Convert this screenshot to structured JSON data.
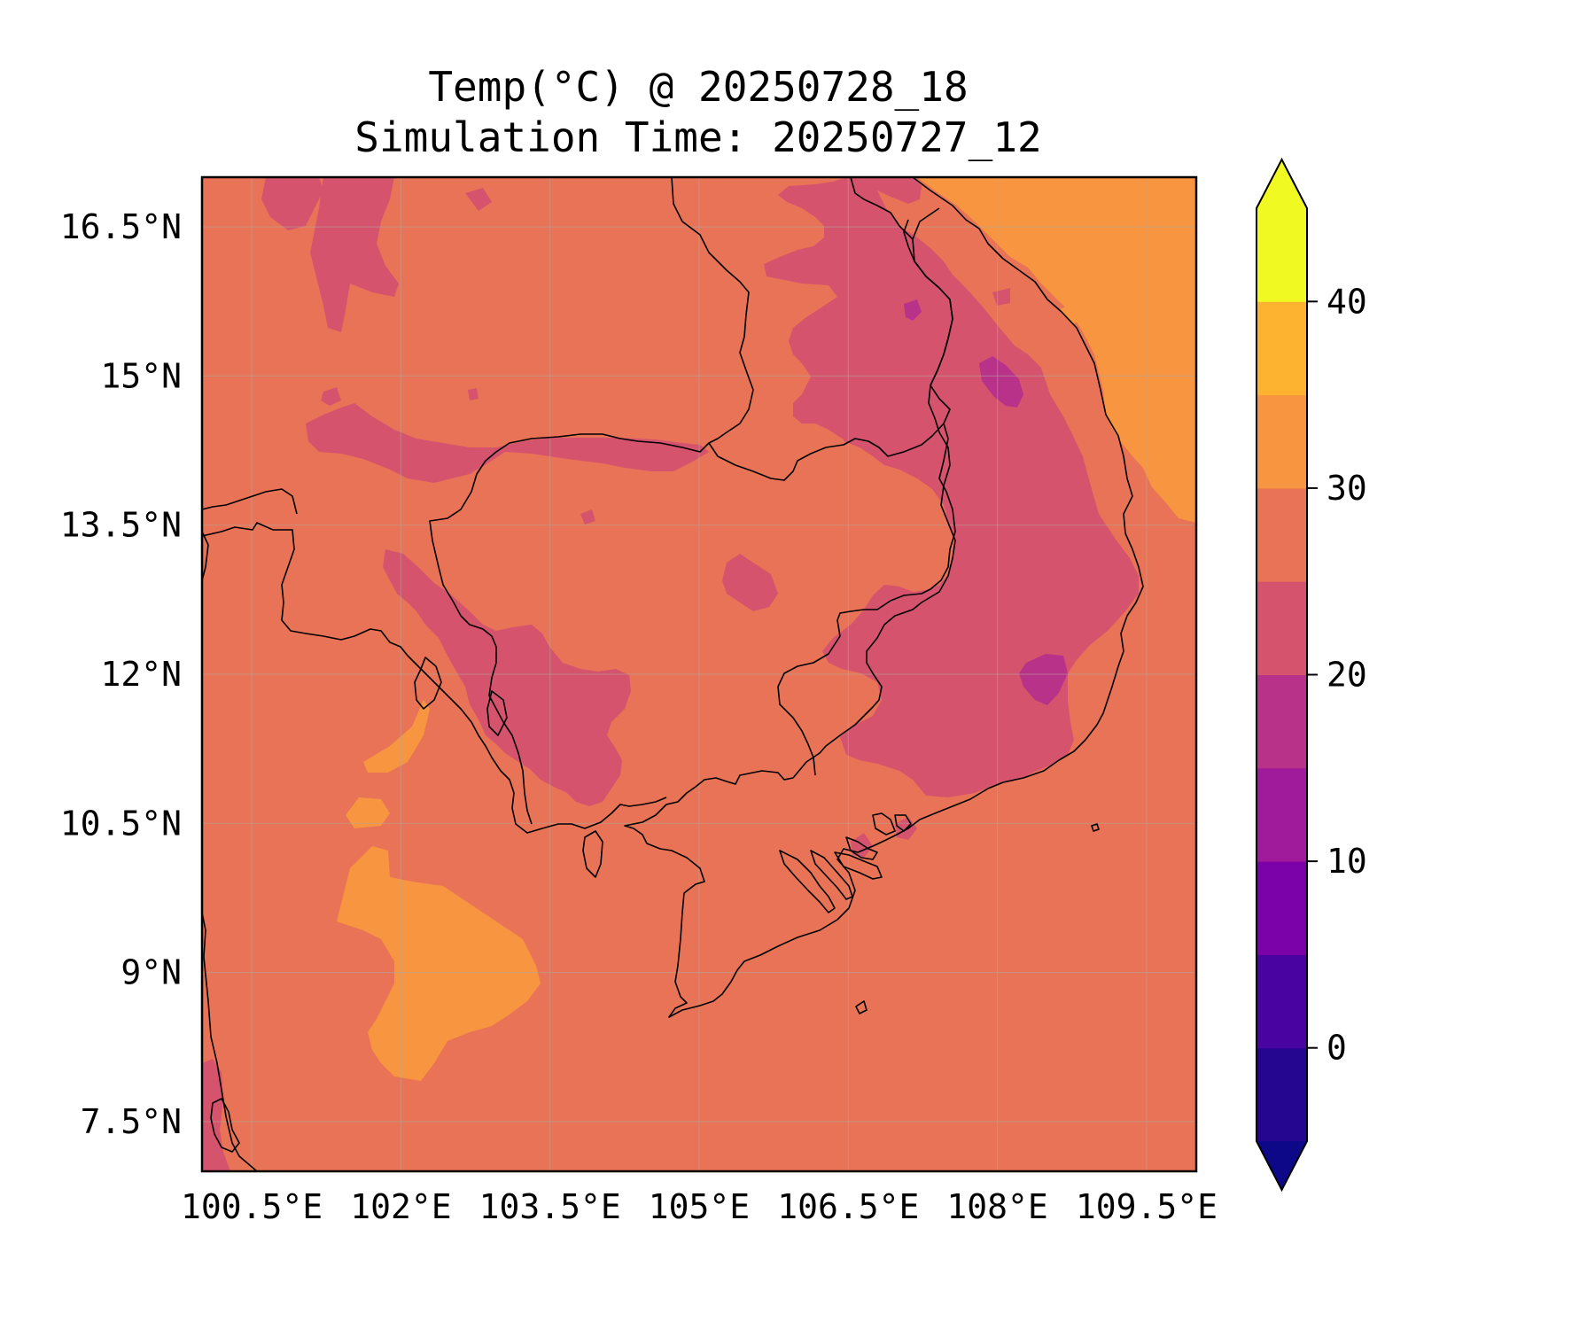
{
  "title": {
    "line1": "Temp(°C) @ 20250728_18",
    "line2": "Simulation Time: 20250727_12"
  },
  "map": {
    "lon_range": [
      100.0,
      110.0
    ],
    "lat_range": [
      7.0,
      17.0
    ],
    "gridlines": true,
    "lon_ticks": [
      {
        "value": 100.5,
        "label": "100.5°E"
      },
      {
        "value": 102.0,
        "label": "102°E"
      },
      {
        "value": 103.5,
        "label": "103.5°E"
      },
      {
        "value": 105.0,
        "label": "105°E"
      },
      {
        "value": 106.5,
        "label": "106.5°E"
      },
      {
        "value": 108.0,
        "label": "108°E"
      },
      {
        "value": 109.5,
        "label": "109.5°E"
      }
    ],
    "lat_ticks": [
      {
        "value": 16.5,
        "label": "16.5°N"
      },
      {
        "value": 15.0,
        "label": "15°N"
      },
      {
        "value": 13.5,
        "label": "13.5°N"
      },
      {
        "value": 12.0,
        "label": "12°N"
      },
      {
        "value": 10.5,
        "label": "10.5°N"
      },
      {
        "value": 9.0,
        "label": "9°N"
      },
      {
        "value": 7.5,
        "label": "7.5°N"
      }
    ],
    "background_band": "25–30",
    "colors": {
      "band_20_25": "#d6536d",
      "band_25_30": "#e97357",
      "band_30_35": "#f89540",
      "band_15_20": "#b83289"
    }
  },
  "colorbar": {
    "levels": [
      -5,
      0,
      5,
      10,
      15,
      20,
      25,
      30,
      35,
      40,
      45
    ],
    "extend": "both",
    "colors": [
      "#240691",
      "#4903a0",
      "#7b02a8",
      "#a01a9c",
      "#b83289",
      "#d6536d",
      "#e97357",
      "#f89540",
      "#fdb32f",
      "#f0f921"
    ],
    "under_color": "#0d0887",
    "over_color": "#f0f921",
    "ticks": [
      {
        "value": 0,
        "label": "0"
      },
      {
        "value": 10,
        "label": "10"
      },
      {
        "value": 20,
        "label": "20"
      },
      {
        "value": 30,
        "label": "30"
      },
      {
        "value": 40,
        "label": "40"
      }
    ]
  }
}
